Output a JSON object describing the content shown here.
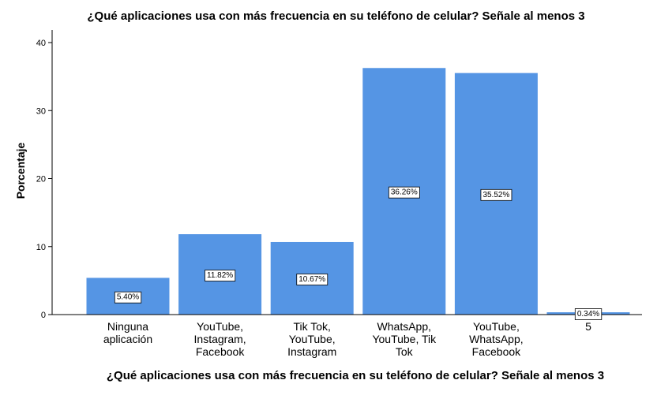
{
  "chart_data": {
    "type": "bar",
    "title": "¿Qué aplicaciones usa con más frecuencia en su teléfono de celular? Señale al menos 3",
    "xlabel": "¿Qué aplicaciones usa con más frecuencia en su teléfono de celular? Señale al menos 3",
    "ylabel": "Porcentaje",
    "ylim": [
      0,
      40
    ],
    "yticks": [
      0,
      10,
      20,
      30,
      40
    ],
    "grid": false,
    "bar_color": "#5595e4",
    "categories": [
      [
        "Ninguna",
        "aplicación"
      ],
      [
        "YouTube,",
        "Instagram,",
        "Facebook"
      ],
      [
        "Tik Tok,",
        "YouTube,",
        "Instagram"
      ],
      [
        "WhatsApp,",
        "YouTube, Tik",
        "Tok"
      ],
      [
        "YouTube,",
        "WhatsApp,",
        "Facebook"
      ],
      [
        "5"
      ]
    ],
    "values": [
      5.4,
      11.82,
      10.67,
      36.26,
      35.52,
      0.34
    ],
    "data_labels": [
      "5.40%",
      "11.82%",
      "10.67%",
      "36.26%",
      "35.52%",
      "0.34%"
    ]
  }
}
